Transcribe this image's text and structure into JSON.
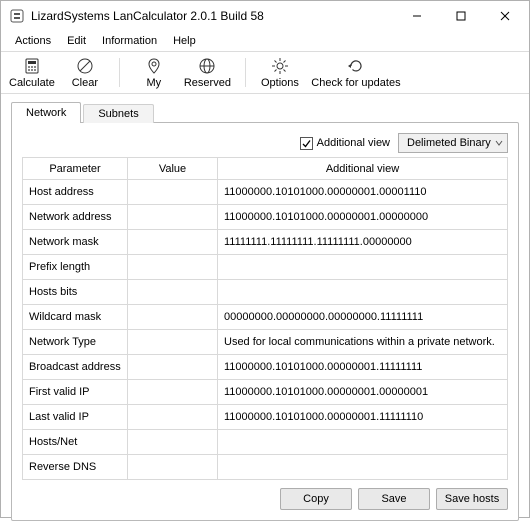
{
  "window": {
    "title": "LizardSystems LanCalculator 2.0.1 Build 58"
  },
  "menu": {
    "items": [
      "Actions",
      "Edit",
      "Information",
      "Help"
    ]
  },
  "toolbar": {
    "calculate": "Calculate",
    "clear": "Clear",
    "my": "My",
    "reserved": "Reserved",
    "options": "Options",
    "check_updates": "Check for updates"
  },
  "tabs": {
    "network": "Network",
    "subnets": "Subnets"
  },
  "options_row": {
    "additional_view_label": "Additional view",
    "select_value": "Delimeted Binary"
  },
  "table": {
    "headers": {
      "parameter": "Parameter",
      "value": "Value",
      "additional": "Additional view"
    },
    "rows": [
      {
        "param": "Host address",
        "value": "",
        "add": "11000000.10101000.00000001.00001110"
      },
      {
        "param": "Network address",
        "value": "",
        "add": "11000000.10101000.00000001.00000000"
      },
      {
        "param": "Network mask",
        "value": "",
        "add": "11111111.11111111.11111111.00000000"
      },
      {
        "param": "Prefix length",
        "value": "",
        "add": ""
      },
      {
        "param": "Hosts bits",
        "value": "",
        "add": ""
      },
      {
        "param": "Wildcard mask",
        "value": "",
        "add": "00000000.00000000.00000000.11111111"
      },
      {
        "param": "Network Type",
        "value": "",
        "add": "Used for local communications within a private network."
      },
      {
        "param": "Broadcast address",
        "value": "",
        "add": "11000000.10101000.00000001.11111111"
      },
      {
        "param": "First valid IP",
        "value": "",
        "add": "11000000.10101000.00000001.00000001"
      },
      {
        "param": "Last valid IP",
        "value": "",
        "add": "11000000.10101000.00000001.11111110"
      },
      {
        "param": "Hosts/Net",
        "value": "",
        "add": ""
      },
      {
        "param": "Reverse DNS",
        "value": "",
        "add": ""
      }
    ]
  },
  "buttons": {
    "copy": "Copy",
    "save": "Save",
    "save_hosts": "Save hosts"
  }
}
